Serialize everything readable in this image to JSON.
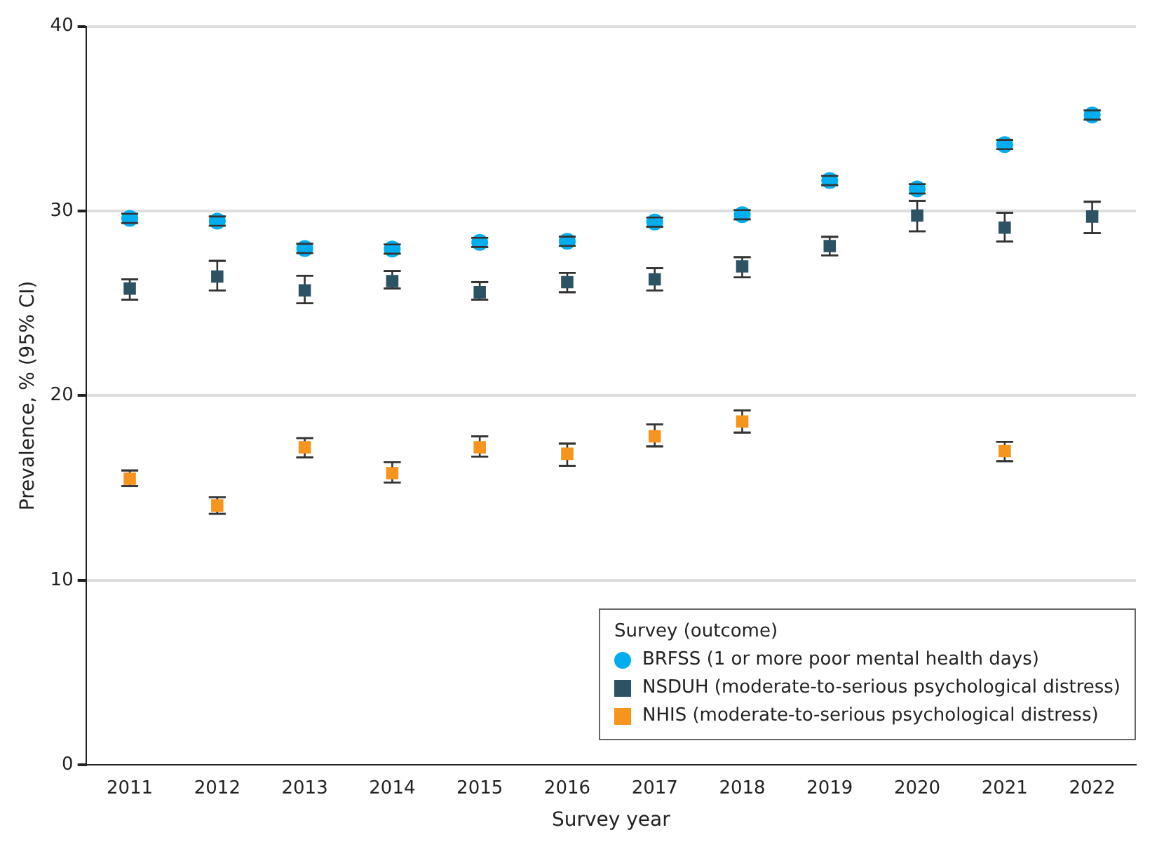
{
  "chart_data": {
    "type": "scatter",
    "xlabel": "Survey year",
    "ylabel": "Prevalence, % (95% CI)",
    "legend_title": "Survey (outcome)",
    "x": [
      2011,
      2012,
      2013,
      2014,
      2015,
      2016,
      2017,
      2018,
      2019,
      2020,
      2021,
      2022
    ],
    "xlim": [
      2010.5,
      2022.5
    ],
    "xticks": [
      2011,
      2012,
      2013,
      2014,
      2015,
      2016,
      2017,
      2018,
      2019,
      2020,
      2021,
      2022
    ],
    "ylim": [
      0,
      40
    ],
    "yticks": [
      0,
      10,
      20,
      30,
      40
    ],
    "grid": "y",
    "legend": "bottom right",
    "series": [
      {
        "name": "BRFSS (1 or more poor mental health days)",
        "color": "#00aeef",
        "marker": "circle",
        "values": [
          29.6,
          29.45,
          27.97,
          27.94,
          28.3,
          28.36,
          29.4,
          29.8,
          31.65,
          31.2,
          33.6,
          35.2
        ],
        "errors": [
          0.25,
          0.25,
          0.25,
          0.25,
          0.25,
          0.25,
          0.25,
          0.25,
          0.25,
          0.25,
          0.25,
          0.25
        ]
      },
      {
        "name": "NSDUH (moderate-to-serious psychological distress)",
        "color": "#2c5364",
        "marker": "square",
        "values": [
          25.8,
          26.45,
          25.7,
          26.2,
          25.6,
          26.15,
          26.3,
          27.0,
          28.1,
          29.75,
          29.1,
          29.7
        ],
        "errors": [
          [
            25.2,
            26.3
          ],
          [
            25.7,
            27.3
          ],
          [
            25.0,
            26.5
          ],
          [
            25.8,
            26.75
          ],
          [
            25.2,
            26.15
          ],
          [
            25.6,
            26.65
          ],
          [
            25.7,
            26.9
          ],
          [
            26.4,
            27.5
          ],
          [
            27.6,
            28.6
          ],
          [
            28.9,
            30.55
          ],
          [
            28.35,
            29.9
          ],
          [
            28.8,
            30.5
          ]
        ]
      },
      {
        "name": "NHIS (moderate-to-serious psychological distress)",
        "color": "#f7941d",
        "marker": "square",
        "values": [
          15.5,
          14.05,
          17.2,
          15.8,
          17.2,
          16.85,
          17.8,
          18.6,
          null,
          null,
          17.0,
          null
        ],
        "errors": [
          [
            15.1,
            15.95
          ],
          [
            13.6,
            14.5
          ],
          [
            16.65,
            17.7
          ],
          [
            15.3,
            16.4
          ],
          [
            16.7,
            17.8
          ],
          [
            16.2,
            17.4
          ],
          [
            17.25,
            18.45
          ],
          [
            18.0,
            19.2
          ],
          null,
          null,
          [
            16.45,
            17.5
          ],
          null
        ]
      }
    ]
  }
}
